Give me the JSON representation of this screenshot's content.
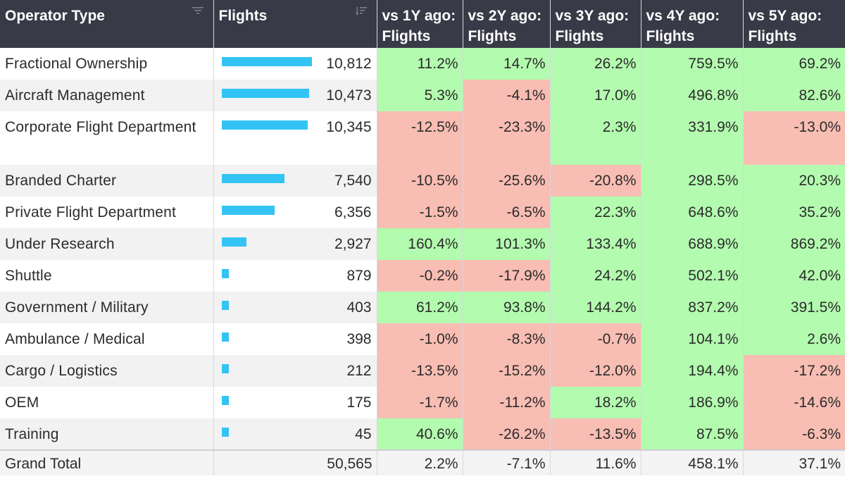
{
  "headers": {
    "operator_type": "Operator Type",
    "flights": "Flights",
    "vs1y": "vs 1Y ago: Flights",
    "vs2y": "vs 2Y ago: Flights",
    "vs3y": "vs 3Y ago: Flights",
    "vs4y": "vs 4Y ago: Flights",
    "vs5y": "vs 5Y ago: Flights"
  },
  "icons": {
    "filter": "filter-icon",
    "sort": "sort-descending-icon"
  },
  "colors": {
    "header_bg": "#393a47",
    "bar": "#33c4f5",
    "positive": "#b3fbaf",
    "negative": "#f8bdb3"
  },
  "max_flights": 10812,
  "rows": [
    {
      "name": "Fractional Ownership",
      "flights": "10,812",
      "flights_num": 10812,
      "vs1y": "11.2%",
      "vs2y": "14.7%",
      "vs3y": "26.2%",
      "vs4y": "759.5%",
      "vs5y": "69.2%"
    },
    {
      "name": "Aircraft Management",
      "flights": "10,473",
      "flights_num": 10473,
      "vs1y": "5.3%",
      "vs2y": "-4.1%",
      "vs3y": "17.0%",
      "vs4y": "496.8%",
      "vs5y": "82.6%"
    },
    {
      "name": "Corporate Flight Department",
      "flights": "10,345",
      "flights_num": 10345,
      "vs1y": "-12.5%",
      "vs2y": "-23.3%",
      "vs3y": "2.3%",
      "vs4y": "331.9%",
      "vs5y": "-13.0%"
    },
    {
      "name": "Branded Charter",
      "flights": "7,540",
      "flights_num": 7540,
      "vs1y": "-10.5%",
      "vs2y": "-25.6%",
      "vs3y": "-20.8%",
      "vs4y": "298.5%",
      "vs5y": "20.3%"
    },
    {
      "name": "Private Flight Department",
      "flights": "6,356",
      "flights_num": 6356,
      "vs1y": "-1.5%",
      "vs2y": "-6.5%",
      "vs3y": "22.3%",
      "vs4y": "648.6%",
      "vs5y": "35.2%"
    },
    {
      "name": "Under Research",
      "flights": "2,927",
      "flights_num": 2927,
      "vs1y": "160.4%",
      "vs2y": "101.3%",
      "vs3y": "133.4%",
      "vs4y": "688.9%",
      "vs5y": "869.2%"
    },
    {
      "name": "Shuttle",
      "flights": "879",
      "flights_num": 879,
      "vs1y": "-0.2%",
      "vs2y": "-17.9%",
      "vs3y": "24.2%",
      "vs4y": "502.1%",
      "vs5y": "42.0%"
    },
    {
      "name": "Government / Military",
      "flights": "403",
      "flights_num": 403,
      "vs1y": "61.2%",
      "vs2y": "93.8%",
      "vs3y": "144.2%",
      "vs4y": "837.2%",
      "vs5y": "391.5%"
    },
    {
      "name": "Ambulance / Medical",
      "flights": "398",
      "flights_num": 398,
      "vs1y": "-1.0%",
      "vs2y": "-8.3%",
      "vs3y": "-0.7%",
      "vs4y": "104.1%",
      "vs5y": "2.6%"
    },
    {
      "name": "Cargo / Logistics",
      "flights": "212",
      "flights_num": 212,
      "vs1y": "-13.5%",
      "vs2y": "-15.2%",
      "vs3y": "-12.0%",
      "vs4y": "194.4%",
      "vs5y": "-17.2%"
    },
    {
      "name": "OEM",
      "flights": "175",
      "flights_num": 175,
      "vs1y": "-1.7%",
      "vs2y": "-11.2%",
      "vs3y": "18.2%",
      "vs4y": "186.9%",
      "vs5y": "-14.6%"
    },
    {
      "name": "Training",
      "flights": "45",
      "flights_num": 45,
      "vs1y": "40.6%",
      "vs2y": "-26.2%",
      "vs3y": "-13.5%",
      "vs4y": "87.5%",
      "vs5y": "-6.3%"
    }
  ],
  "total": {
    "name": "Grand Total",
    "flights": "50,565",
    "vs1y": "2.2%",
    "vs2y": "-7.1%",
    "vs3y": "11.6%",
    "vs4y": "458.1%",
    "vs5y": "37.1%"
  }
}
